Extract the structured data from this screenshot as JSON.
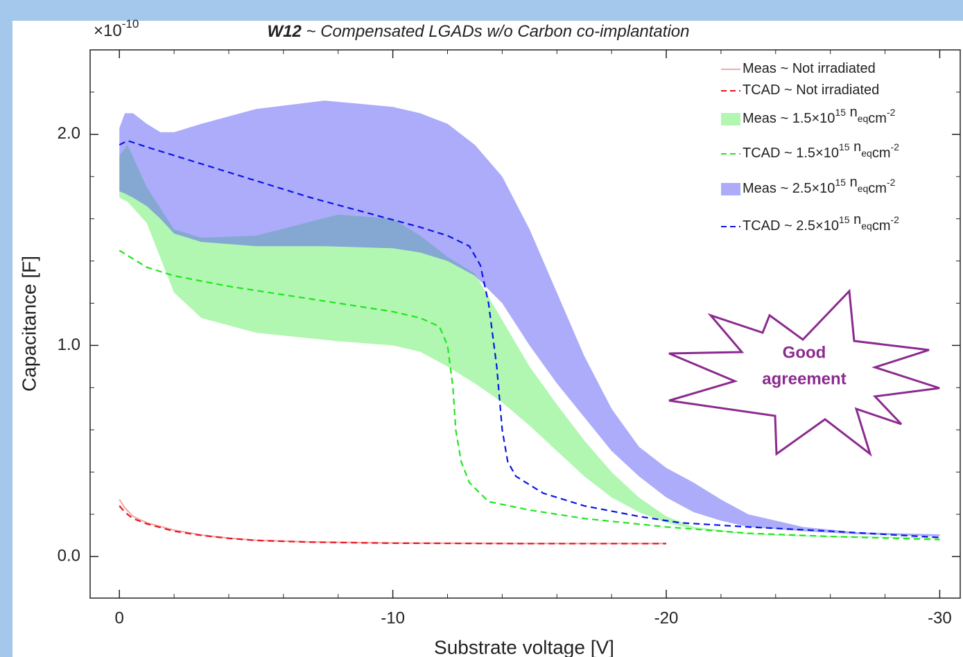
{
  "chart_data": {
    "type": "band_line",
    "title_parts": [
      "W12",
      " ~ Compensated LGADs w/o Carbon co-implantation"
    ],
    "x_label": "Substrate voltage [V]",
    "y_label": "Capacitance [F]",
    "y_multiplier": {
      "base": "×10",
      "exponent": "-10"
    },
    "xlim": [
      1.07,
      -30.75
    ],
    "ylim": [
      -0.197,
      2.4
    ],
    "xticks": [
      0,
      -10,
      -20,
      -30
    ],
    "xminorticks": [
      -2,
      -4,
      -6,
      -8,
      -12,
      -14,
      -16,
      -18,
      -22,
      -24,
      -26,
      -28
    ],
    "yticks": [
      {
        "value": 0,
        "label": "0.0"
      },
      {
        "value": 1,
        "label": "1.0"
      },
      {
        "value": 2,
        "label": "2.0"
      }
    ],
    "yminorticks": [
      0.2,
      0.4,
      0.6,
      0.8,
      1.2,
      1.4,
      1.6,
      1.8,
      2.2
    ],
    "legend": "upper right",
    "annotation": {
      "lines": [
        "Good",
        "agreement"
      ],
      "color": "#8b2a8e"
    },
    "series": [
      {
        "name": [
          "Meas ~ Not irradiated"
        ],
        "kind": "line",
        "style": "solid",
        "color": "#f5a9a9",
        "x": [
          0,
          -0.2,
          -0.5,
          -1,
          -2,
          -3,
          -4,
          -5,
          -7,
          -10,
          -15,
          -20
        ],
        "values": [
          0.27,
          0.23,
          0.19,
          0.16,
          0.125,
          0.102,
          0.087,
          0.077,
          0.069,
          0.064,
          0.062,
          0.062
        ]
      },
      {
        "name": [
          "TCAD ~ Not irradiated"
        ],
        "kind": "line",
        "style": "dashed",
        "color": "#e8141e",
        "x": [
          0,
          -0.2,
          -0.5,
          -1,
          -2,
          -3,
          -4,
          -5,
          -7,
          -10,
          -15,
          -20
        ],
        "values": [
          0.24,
          0.21,
          0.18,
          0.155,
          0.12,
          0.1,
          0.086,
          0.076,
          0.068,
          0.063,
          0.061,
          0.061
        ]
      },
      {
        "name": [
          "Meas ~ 1.5×10",
          {
            "sup": "15"
          },
          " n",
          {
            "sub": "eq"
          },
          "cm",
          {
            "sup": "-2"
          }
        ],
        "kind": "band",
        "color": "#64f064",
        "alpha": 0.5,
        "x": [
          0,
          -0.3,
          -1,
          -2,
          -3,
          -5,
          -8,
          -10,
          -11,
          -12,
          -13,
          -14,
          -15,
          -16,
          -17,
          -18,
          -19,
          -20,
          -21,
          -23,
          -25,
          -30
        ],
        "upper": [
          1.9,
          1.95,
          1.75,
          1.55,
          1.51,
          1.52,
          1.62,
          1.6,
          1.52,
          1.42,
          1.34,
          1.12,
          0.9,
          0.72,
          0.55,
          0.4,
          0.28,
          0.19,
          0.14,
          0.11,
          0.1,
          0.09
        ],
        "lower": [
          1.7,
          1.68,
          1.58,
          1.25,
          1.13,
          1.06,
          1.02,
          1.0,
          0.97,
          0.9,
          0.82,
          0.73,
          0.62,
          0.5,
          0.38,
          0.28,
          0.21,
          0.16,
          0.13,
          0.105,
          0.095,
          0.085
        ]
      },
      {
        "name": [
          "TCAD ~ 1.5×10",
          {
            "sup": "15"
          },
          " n",
          {
            "sub": "eq"
          },
          "cm",
          {
            "sup": "-2"
          }
        ],
        "kind": "line",
        "style": "dashed",
        "color": "#1ee61e",
        "x": [
          0,
          -0.5,
          -1,
          -2,
          -4,
          -6,
          -8,
          -10,
          -11,
          -11.7,
          -12,
          -12.2,
          -12.3,
          -12.5,
          -12.8,
          -13.5,
          -15,
          -17,
          -20,
          -23,
          -26,
          -30
        ],
        "values": [
          1.45,
          1.41,
          1.37,
          1.33,
          1.28,
          1.24,
          1.2,
          1.16,
          1.13,
          1.09,
          1.0,
          0.8,
          0.6,
          0.45,
          0.35,
          0.26,
          0.22,
          0.18,
          0.14,
          0.11,
          0.095,
          0.08
        ]
      },
      {
        "name": [
          "Meas ~ 2.5×10",
          {
            "sup": "15"
          },
          " n",
          {
            "sub": "eq"
          },
          "cm",
          {
            "sup": "-2"
          }
        ],
        "kind": "band",
        "color": "#5a5af5",
        "alpha": 0.5,
        "x": [
          0,
          -0.2,
          -0.5,
          -1,
          -1.5,
          -2,
          -3,
          -5,
          -7.5,
          -10,
          -11,
          -12,
          -13,
          -14,
          -15,
          -16,
          -17,
          -18,
          -19,
          -20,
          -21,
          -22,
          -23,
          -25,
          -27,
          -30
        ],
        "upper": [
          2.03,
          2.1,
          2.1,
          2.05,
          2.01,
          2.01,
          2.05,
          2.12,
          2.16,
          2.13,
          2.1,
          2.05,
          1.95,
          1.8,
          1.55,
          1.25,
          0.95,
          0.7,
          0.52,
          0.42,
          0.35,
          0.27,
          0.2,
          0.14,
          0.115,
          0.105
        ],
        "lower": [
          1.73,
          1.72,
          1.7,
          1.66,
          1.6,
          1.53,
          1.49,
          1.47,
          1.47,
          1.46,
          1.44,
          1.4,
          1.33,
          1.2,
          1.0,
          0.82,
          0.66,
          0.5,
          0.38,
          0.28,
          0.21,
          0.17,
          0.14,
          0.12,
          0.105,
          0.095
        ]
      },
      {
        "name": [
          "TCAD ~ 2.5×10",
          {
            "sup": "15"
          },
          " n",
          {
            "sub": "eq"
          },
          "cm",
          {
            "sup": "-2"
          }
        ],
        "kind": "line",
        "style": "dashed",
        "color": "#0a14e6",
        "x": [
          0,
          -0.3,
          -1,
          -3,
          -5,
          -7,
          -9,
          -11,
          -12,
          -12.8,
          -13.2,
          -13.5,
          -13.8,
          -14,
          -14.2,
          -14.5,
          -15.5,
          -17,
          -19,
          -20.5,
          -23,
          -26,
          -30
        ],
        "values": [
          1.95,
          1.97,
          1.94,
          1.86,
          1.78,
          1.7,
          1.63,
          1.56,
          1.52,
          1.47,
          1.38,
          1.2,
          0.9,
          0.6,
          0.45,
          0.38,
          0.3,
          0.24,
          0.19,
          0.16,
          0.14,
          0.12,
          0.09
        ]
      }
    ]
  }
}
